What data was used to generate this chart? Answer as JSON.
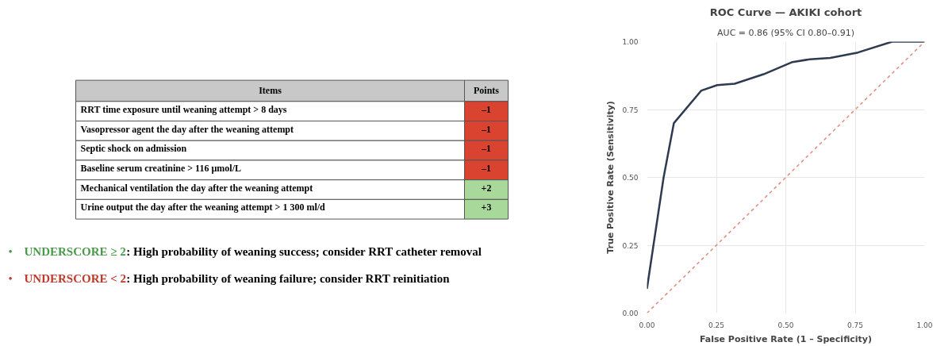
{
  "chart_data": [
    {
      "type": "other",
      "annotations": [
        "Items",
        "Points",
        "RRT time exposure until weaning attempt > 8 days",
        "–1",
        "Vasopressor agent the day after the weaning attempt",
        "–1",
        "Septic shock on admission",
        "–1",
        "Baseline serum creatinine > 116 µmol/L",
        "–1",
        "Mechanical ventilation the day after the weaning attempt",
        "+2",
        "Urine output the day after the weaning attempt > 1 300 ml/d",
        "+3",
        "•",
        "UNDERSCORE ≥ 2",
        ": High probability of weaning success; consider RRT catheter removal",
        "•",
        "UNDERSCORE < 2",
        ": High probability of weaning failure; consider RRT reinitiation"
      ],
      "colors": [
        "#d9432f",
        "#d9432f",
        "#d9432f",
        "#d9432f",
        "#a8d99a",
        "#a8d99a"
      ]
    },
    {
      "type": "line",
      "title": "ROC Curve — AKIKI cohort",
      "subtitle": "AUC = 0.86 (95% CI 0.80–0.91)",
      "xlabel": "False Positive Rate (1 – Specificity)",
      "ylabel": "True Positive Rate (Sensitivity)",
      "series": [
        {
          "color": "#2e3a4f",
          "x": [
            0.0,
            0.06,
            0.097,
            0.196,
            0.253,
            0.316,
            0.42,
            0.524,
            0.586,
            0.66,
            0.76,
            0.883,
            1.0
          ],
          "values": [
            0.09,
            0.5,
            0.7,
            0.82,
            0.84,
            0.845,
            0.88,
            0.925,
            0.935,
            0.94,
            0.96,
            1.0,
            1.0
          ]
        },
        {
          "color": "#e08a7a",
          "line_style": "dashed",
          "x": [
            0.0,
            1.0
          ],
          "values": [
            0.0,
            1.0
          ]
        }
      ],
      "xlim": [
        0.0,
        1.0
      ],
      "ylim": [
        0.0,
        1.0
      ],
      "xticks": [
        {
          "value": 0,
          "label": "0.00"
        },
        {
          "value": 0.25,
          "label": "0.25"
        },
        {
          "value": 0.5,
          "label": "0.50"
        },
        {
          "value": 0.75,
          "label": "0.75"
        },
        {
          "value": 1,
          "label": "1.00"
        }
      ],
      "yticks": [
        {
          "value": 0,
          "label": "0.00"
        },
        {
          "value": 0.25,
          "label": "0.25"
        },
        {
          "value": 0.5,
          "label": "0.50"
        },
        {
          "value": 0.75,
          "label": "0.75"
        },
        {
          "value": 1,
          "label": "1.00"
        }
      ],
      "grid": true
    }
  ]
}
